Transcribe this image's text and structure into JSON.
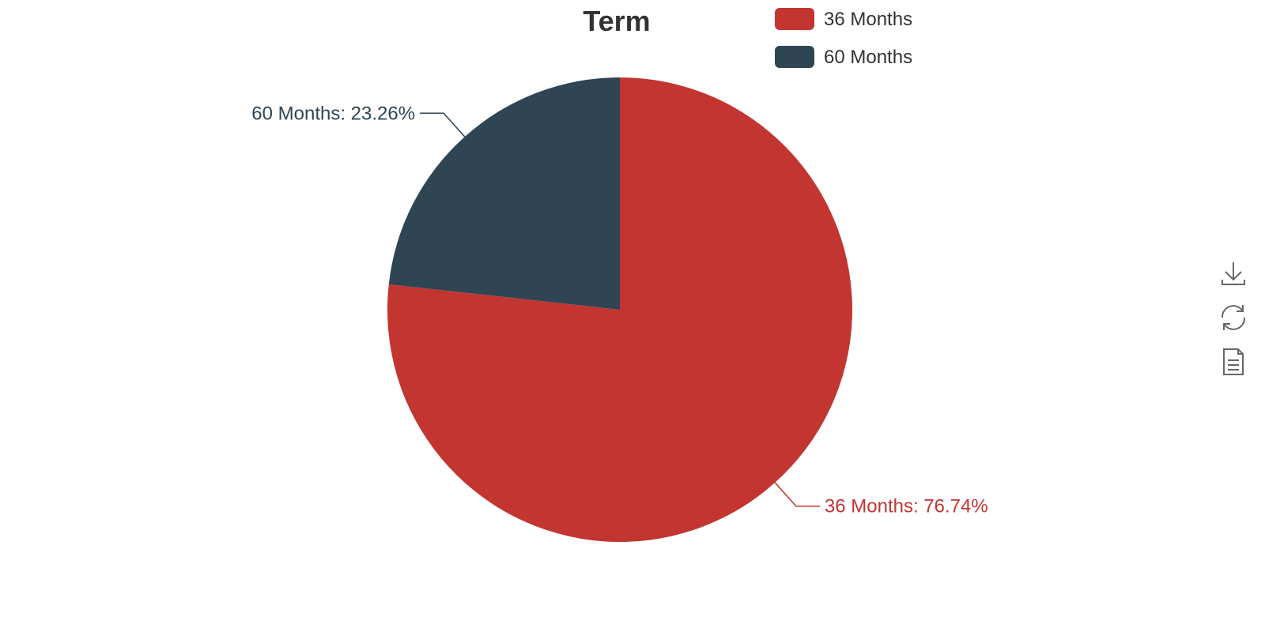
{
  "chart_data": {
    "type": "pie",
    "title": "Term",
    "categories": [
      "36 Months",
      "60 Months"
    ],
    "values": [
      76.74,
      23.26
    ],
    "unit": "%",
    "colors": [
      "#c23531",
      "#2f4554"
    ],
    "labels": [
      "36 Months: 76.74%",
      "60 Months: 23.26%"
    ],
    "legend": {
      "placement": "top",
      "items": [
        "36 Months",
        "60 Months"
      ]
    }
  },
  "toolbox": {
    "icons": [
      "download-icon",
      "refresh-icon",
      "data-view-icon"
    ]
  }
}
